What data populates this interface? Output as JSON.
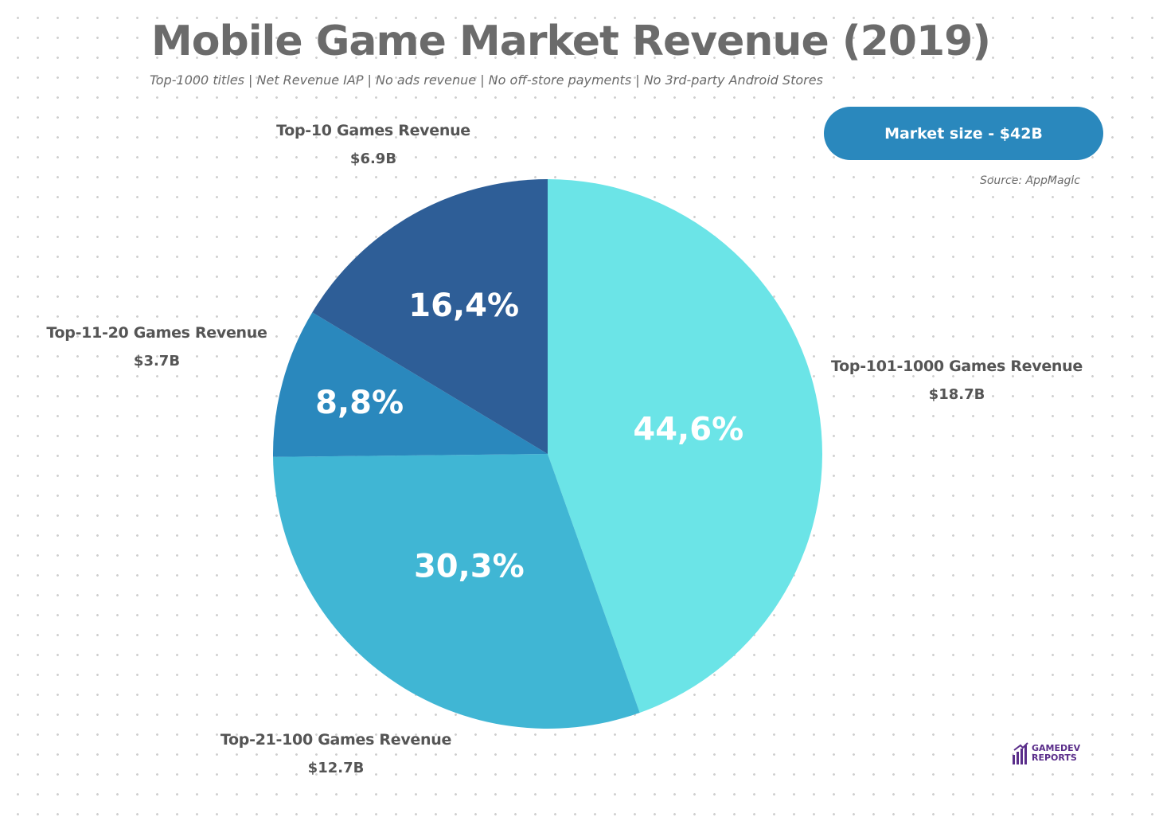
{
  "header": {
    "title": "Mobile Game Market Revenue (2019)",
    "subtitle": "Top-1000 titles | Net Revenue IAP | No ads revenue | No off-store payments | No 3rd-party Android Stores"
  },
  "badge": {
    "text": "Market size - $42B",
    "color": "#2a88bd"
  },
  "source": "Source: AppMagic",
  "logo": {
    "line1": "GAMEDEV",
    "line2": "REPORTS",
    "color": "#5a2d8a"
  },
  "chart_data": {
    "type": "pie",
    "start_angle": "12 o'clock",
    "direction": "clockwise",
    "slices": [
      {
        "label": "Top-101-1000 Games Revenue",
        "amount": "$18.7B",
        "percent": 44.6,
        "percent_label": "44,6%",
        "color": "#6be4e7"
      },
      {
        "label": "Top-21-100 Games Revenue",
        "amount": "$12.7B",
        "percent": 30.3,
        "percent_label": "30,3%",
        "color": "#40b6d4"
      },
      {
        "label": "Top-11-20 Games Revenue",
        "amount": "$3.7B",
        "percent": 8.8,
        "percent_label": "8,8%",
        "color": "#2a88bd"
      },
      {
        "label": "Top-10 Games Revenue",
        "amount": "$6.9B",
        "percent": 16.4,
        "percent_label": "16,4%",
        "color": "#2e5e97"
      }
    ]
  }
}
